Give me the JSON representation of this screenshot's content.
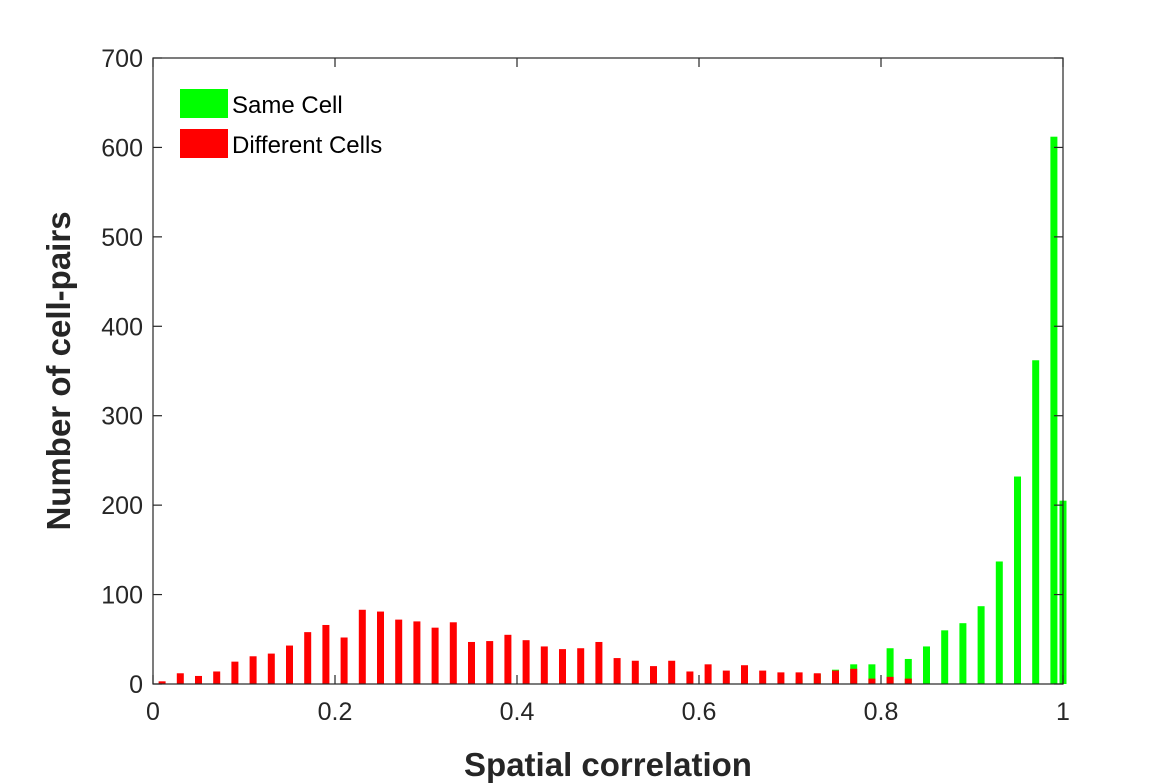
{
  "chart_data": {
    "type": "bar",
    "xlabel": "Spatial correlation",
    "ylabel": "Number of cell-pairs",
    "xlim": [
      0,
      1
    ],
    "ylim": [
      0,
      700
    ],
    "x_ticks": [
      0,
      0.2,
      0.4,
      0.6,
      0.8,
      1
    ],
    "x_tick_labels": [
      "0",
      "0.2",
      "0.4",
      "0.6",
      "0.8",
      "1"
    ],
    "y_ticks": [
      0,
      100,
      200,
      300,
      400,
      500,
      600,
      700
    ],
    "y_tick_labels": [
      "0",
      "100",
      "200",
      "300",
      "400",
      "500",
      "600",
      "700"
    ],
    "grid": false,
    "legend_position": "top-left",
    "series": [
      {
        "name": "Same Cell",
        "color": "#00ff00",
        "x": [
          0.71,
          0.73,
          0.75,
          0.77,
          0.79,
          0.81,
          0.83,
          0.85,
          0.87,
          0.89,
          0.91,
          0.93,
          0.95,
          0.97,
          0.99
        ],
        "values": [
          5,
          11,
          16,
          22,
          22,
          40,
          28,
          42,
          60,
          68,
          87,
          137,
          232,
          362,
          612
        ]
      },
      {
        "name": "Different Cells",
        "color": "#ff0000",
        "x": [
          0.01,
          0.03,
          0.05,
          0.07,
          0.09,
          0.11,
          0.13,
          0.15,
          0.17,
          0.19,
          0.21,
          0.23,
          0.25,
          0.27,
          0.29,
          0.31,
          0.33,
          0.35,
          0.37,
          0.39,
          0.41,
          0.43,
          0.45,
          0.47,
          0.49,
          0.51,
          0.53,
          0.55,
          0.57,
          0.59,
          0.61,
          0.63,
          0.65,
          0.67,
          0.69,
          0.71,
          0.73,
          0.75,
          0.77,
          0.79,
          0.81,
          0.83
        ],
        "values": [
          3,
          12,
          9,
          14,
          25,
          31,
          34,
          43,
          58,
          66,
          52,
          83,
          81,
          72,
          70,
          63,
          69,
          47,
          48,
          55,
          49,
          42,
          39,
          40,
          47,
          29,
          26,
          20,
          26,
          14,
          22,
          15,
          21,
          15,
          13,
          13,
          12,
          15,
          17,
          6,
          8,
          6
        ]
      },
      {
        "name": "",
        "color": "#00ff00",
        "x": [
          1.0
        ],
        "values": [
          205
        ]
      }
    ]
  }
}
